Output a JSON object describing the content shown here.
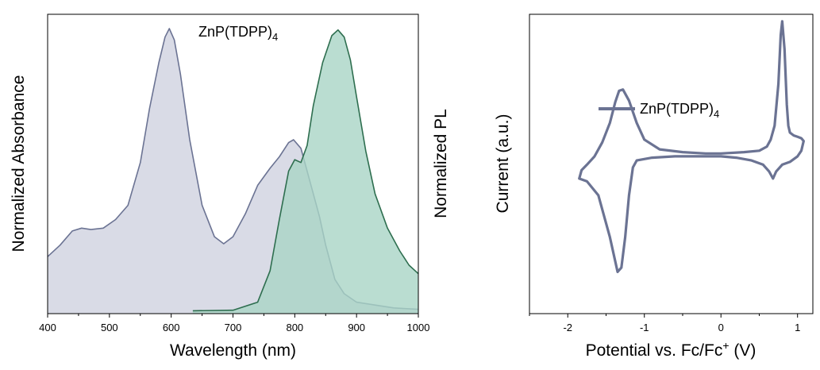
{
  "chart_data": [
    {
      "type": "area",
      "annotation": {
        "base": "ZnP(TDPP)",
        "sub": "4"
      },
      "xlabel": "Wavelength (nm)",
      "ylabel_left": "Normalized Absorbance",
      "ylabel_right": "Normalized PL",
      "xlim": [
        400,
        1000
      ],
      "ylim": [
        0,
        1.05
      ],
      "xticks": [
        400,
        500,
        600,
        700,
        800,
        900,
        1000
      ],
      "colors": {
        "absorbance_fill": "#d9dbe6",
        "absorbance_line": "#6b7393",
        "pl_fill": "#a9d5c6",
        "pl_line": "#2e6e4f"
      },
      "series": [
        {
          "key": "absorbance",
          "x": [
            400,
            420,
            440,
            455,
            470,
            490,
            510,
            530,
            550,
            565,
            580,
            590,
            597,
            605,
            615,
            630,
            650,
            670,
            685,
            700,
            720,
            740,
            760,
            775,
            790,
            798,
            810,
            825,
            840,
            850,
            865,
            880,
            900,
            930,
            960,
            1000
          ],
          "y": [
            0.2,
            0.24,
            0.29,
            0.3,
            0.295,
            0.3,
            0.33,
            0.38,
            0.53,
            0.72,
            0.88,
            0.97,
            1.0,
            0.96,
            0.84,
            0.61,
            0.38,
            0.27,
            0.245,
            0.27,
            0.35,
            0.45,
            0.51,
            0.55,
            0.6,
            0.61,
            0.58,
            0.46,
            0.34,
            0.24,
            0.12,
            0.07,
            0.04,
            0.03,
            0.02,
            0.015
          ]
        },
        {
          "key": "pl",
          "x": [
            635,
            700,
            740,
            760,
            775,
            790,
            800,
            810,
            820,
            830,
            845,
            860,
            870,
            880,
            890,
            900,
            915,
            930,
            950,
            970,
            985,
            1000
          ],
          "y": [
            0.01,
            0.012,
            0.04,
            0.15,
            0.33,
            0.5,
            0.54,
            0.53,
            0.59,
            0.73,
            0.88,
            0.975,
            0.995,
            0.97,
            0.89,
            0.76,
            0.57,
            0.42,
            0.3,
            0.22,
            0.17,
            0.14
          ]
        }
      ]
    },
    {
      "type": "line",
      "legend": {
        "label_base": "ZnP(TDPP)",
        "label_sub": "4"
      },
      "xlabel_parts": {
        "pre": "Potential vs. Fc/Fc",
        "sup": "+",
        "post": " (V)"
      },
      "ylabel": "Current (a.u.)",
      "xlim": [
        -2.5,
        1.2
      ],
      "ylim": [
        -1.15,
        1.0
      ],
      "xticks": [
        -2,
        -1,
        0,
        1
      ],
      "xtick_labels": [
        "-2",
        "-1",
        "0",
        "1"
      ],
      "colors": {
        "line": "#6b7393"
      },
      "series": [
        {
          "key": "cv",
          "x": [
            0.0,
            0.3,
            0.5,
            0.6,
            0.65,
            0.7,
            0.75,
            0.78,
            0.8,
            0.83,
            0.86,
            0.88,
            0.9,
            0.95,
            1.0,
            1.05,
            1.08,
            1.05,
            1.0,
            0.9,
            0.8,
            0.72,
            0.68,
            0.63,
            0.55,
            0.4,
            0.2,
            0.0,
            -0.3,
            -0.6,
            -0.9,
            -1.1,
            -1.15,
            -1.2,
            -1.25,
            -1.3,
            -1.35,
            -1.45,
            -1.6,
            -1.75,
            -1.85,
            -1.82,
            -1.75,
            -1.65,
            -1.55,
            -1.45,
            -1.38,
            -1.33,
            -1.28,
            -1.2,
            -1.1,
            -1.0,
            -0.8,
            -0.5,
            -0.2,
            0.0
          ],
          "y": [
            0.0,
            0.01,
            0.02,
            0.05,
            0.1,
            0.2,
            0.5,
            0.85,
            0.95,
            0.75,
            0.35,
            0.2,
            0.15,
            0.13,
            0.12,
            0.11,
            0.09,
            0.02,
            -0.02,
            -0.06,
            -0.08,
            -0.13,
            -0.18,
            -0.13,
            -0.08,
            -0.05,
            -0.03,
            -0.02,
            -0.02,
            -0.02,
            -0.03,
            -0.05,
            -0.1,
            -0.3,
            -0.6,
            -0.82,
            -0.85,
            -0.6,
            -0.3,
            -0.2,
            -0.18,
            -0.12,
            -0.08,
            -0.02,
            0.08,
            0.22,
            0.37,
            0.45,
            0.46,
            0.38,
            0.22,
            0.1,
            0.03,
            0.01,
            0.0,
            0.0
          ]
        }
      ]
    }
  ]
}
